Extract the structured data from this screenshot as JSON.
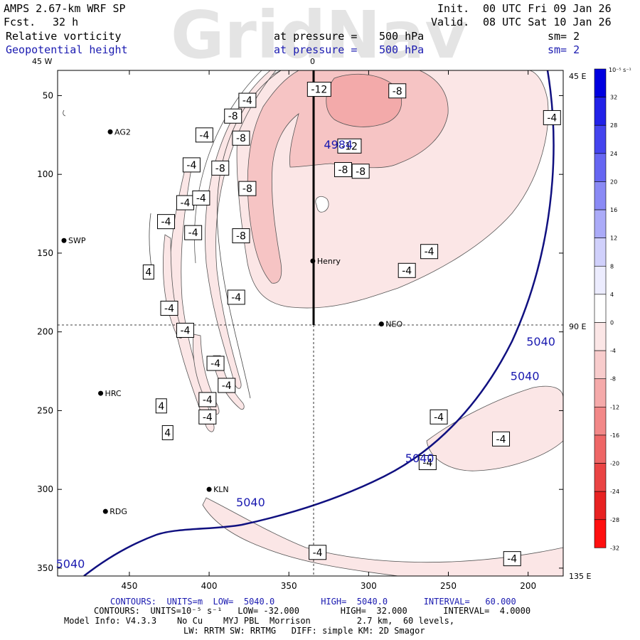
{
  "header": {
    "model_title": "AMPS 2.67-km WRF SP",
    "forecast_label": "Fcst.",
    "forecast_hours": "32 h",
    "init_label": "Init.",
    "init_time": "00 UTC Fri 09 Jan 26",
    "valid_label": "Valid.",
    "valid_time": "08 UTC Sat 10 Jan 26",
    "field1_name": "Relative vorticity",
    "field1_pressure_label": "at pressure =",
    "field1_pressure": "500 hPa",
    "field1_smoothing": "sm= 2",
    "field2_name": "Geopotential height",
    "field2_pressure_label": "at pressure =",
    "field2_pressure": "500 hPa",
    "field2_smoothing": "sm= 2",
    "watermark": "GridNav"
  },
  "axes": {
    "top_left_label": "45 W",
    "top_center_label": "0",
    "right_labels": [
      "45 E",
      "90 E",
      "135 E"
    ],
    "y_ticks": [
      50,
      100,
      150,
      200,
      250,
      300,
      350
    ],
    "x_ticks": [
      450,
      400,
      350,
      300,
      250,
      200
    ]
  },
  "stations": [
    {
      "name": "AG2",
      "x": 462,
      "y": 73
    },
    {
      "name": "SWP",
      "x": 491,
      "y": 142
    },
    {
      "name": "Henry",
      "x": 335,
      "y": 155
    },
    {
      "name": "NEO",
      "x": 292,
      "y": 195
    },
    {
      "name": "HRC",
      "x": 468,
      "y": 239
    },
    {
      "name": "KLN",
      "x": 400,
      "y": 300
    },
    {
      "name": "RDG",
      "x": 465,
      "y": 314
    }
  ],
  "vorticity_labels": [
    {
      "text": "-12",
      "x": 331,
      "y": 46
    },
    {
      "text": "-8",
      "x": 282,
      "y": 47
    },
    {
      "text": "-4",
      "x": 376,
      "y": 53
    },
    {
      "text": "-8",
      "x": 385,
      "y": 63
    },
    {
      "text": "-4",
      "x": 185,
      "y": 64
    },
    {
      "text": "-4",
      "x": 403,
      "y": 75
    },
    {
      "text": "-8",
      "x": 380,
      "y": 77
    },
    {
      "text": "-12",
      "x": 312,
      "y": 82
    },
    {
      "text": "-4",
      "x": 411,
      "y": 94
    },
    {
      "text": "-8",
      "x": 393,
      "y": 96
    },
    {
      "text": "-8",
      "x": 316,
      "y": 97
    },
    {
      "text": "-8",
      "x": 305,
      "y": 98
    },
    {
      "text": "-8",
      "x": 376,
      "y": 109
    },
    {
      "text": "-4",
      "x": 415,
      "y": 118
    },
    {
      "text": "-4",
      "x": 405,
      "y": 115
    },
    {
      "text": "-4",
      "x": 427,
      "y": 130
    },
    {
      "text": "-4",
      "x": 410,
      "y": 137
    },
    {
      "text": "-8",
      "x": 380,
      "y": 139
    },
    {
      "text": "-4",
      "x": 262,
      "y": 149
    },
    {
      "text": "-4",
      "x": 276,
      "y": 161
    },
    {
      "text": "4",
      "x": 438,
      "y": 162
    },
    {
      "text": "-4",
      "x": 383,
      "y": 178
    },
    {
      "text": "-4",
      "x": 425,
      "y": 185
    },
    {
      "text": "-4",
      "x": 415,
      "y": 199
    },
    {
      "text": "-4",
      "x": 396,
      "y": 220
    },
    {
      "text": "-4",
      "x": 389,
      "y": 234
    },
    {
      "text": "-4",
      "x": 401,
      "y": 243
    },
    {
      "text": "4",
      "x": 430,
      "y": 247
    },
    {
      "text": "-4",
      "x": 401,
      "y": 254
    },
    {
      "text": "-4",
      "x": 256,
      "y": 254
    },
    {
      "text": "4",
      "x": 426,
      "y": 264
    },
    {
      "text": "-4",
      "x": 217,
      "y": 268
    },
    {
      "text": "-4",
      "x": 263,
      "y": 283
    },
    {
      "text": "-4",
      "x": 332,
      "y": 340
    },
    {
      "text": "-4",
      "x": 210,
      "y": 344
    }
  ],
  "height_labels": [
    {
      "text": "4984",
      "x": 319,
      "y": 81
    },
    {
      "text": "5040",
      "x": 192,
      "y": 206
    },
    {
      "text": "5040",
      "x": 202,
      "y": 228
    },
    {
      "text": "5040",
      "x": 268,
      "y": 280
    },
    {
      "text": "5040",
      "x": 374,
      "y": 308
    },
    {
      "text": "5040",
      "x": 487,
      "y": 347
    }
  ],
  "colorbar": {
    "unit_label": "10⁻⁵ s⁻¹",
    "levels": [
      32,
      28,
      24,
      20,
      16,
      12,
      8,
      4,
      0,
      -4,
      -8,
      -12,
      -16,
      -20,
      -24,
      -28,
      -32
    ],
    "colors": [
      "#0000e0",
      "#2222e8",
      "#4444ee",
      "#6666f2",
      "#8a8af5",
      "#ababf8",
      "#d0d0fb",
      "#ececfe",
      "#ffffff",
      "#fbe6e6",
      "#f8cccc",
      "#f5aaaa",
      "#f28888",
      "#ee6666",
      "#ea4444",
      "#e82222",
      "#ff1010"
    ]
  },
  "footer": {
    "line1": "CONTOURS:  UNITS=m  LOW=  5040.0         HIGH=  5040.0       INTERVAL=   60.000",
    "line2": "CONTOURS:  UNITS=10⁻⁵ s⁻¹   LOW= -32.000        HIGH=  32.000       INTERVAL=  4.0000",
    "line3": "Model Info: V4.3.3    No Cu    MYJ PBL  Morrison         2.7 km,  60 levels,",
    "line4": "LW: RRTM SW: RRTMG   DIFF: simple KM: 2D Smagor"
  },
  "colors": {
    "height_contour": "#101080",
    "vort_fill_light": "#fbe6e6",
    "vort_fill_mid": "#f6c4c4",
    "vort_fill_dark": "#f3aaaa"
  }
}
